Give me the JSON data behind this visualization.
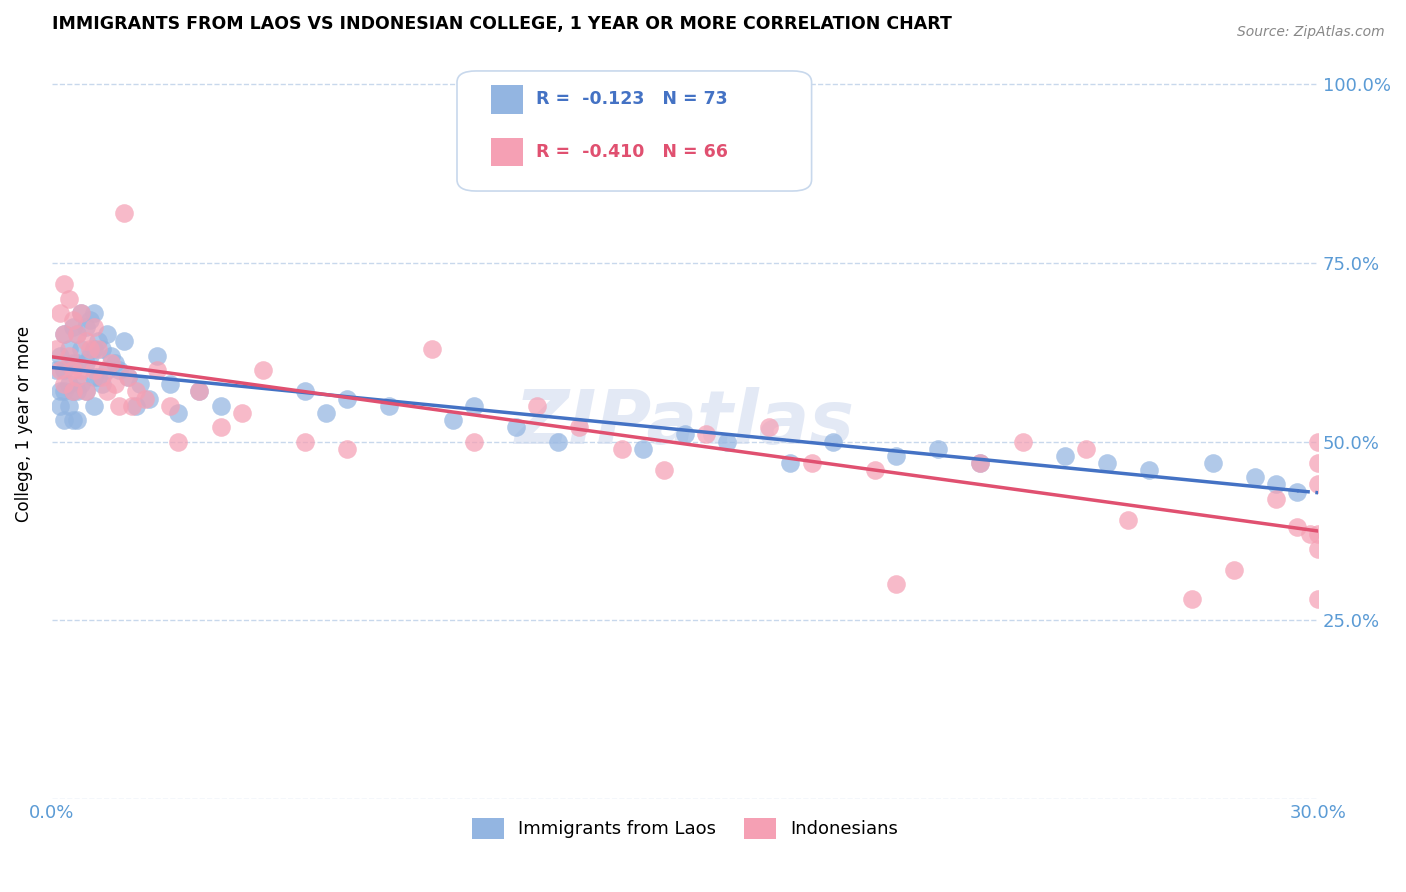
{
  "title": "IMMIGRANTS FROM LAOS VS INDONESIAN COLLEGE, 1 YEAR OR MORE CORRELATION CHART",
  "source": "Source: ZipAtlas.com",
  "ylabel": "College, 1 year or more",
  "xlim": [
    0.0,
    0.3
  ],
  "ylim": [
    0.0,
    1.05
  ],
  "xticks": [
    0.0,
    0.05,
    0.1,
    0.15,
    0.2,
    0.25,
    0.3
  ],
  "xticklabels": [
    "0.0%",
    "",
    "",
    "",
    "",
    "",
    "30.0%"
  ],
  "yticks": [
    0.0,
    0.25,
    0.5,
    0.75,
    1.0
  ],
  "yticklabels": [
    "",
    "25.0%",
    "50.0%",
    "75.0%",
    "100.0%"
  ],
  "legend_laos_r": "-0.123",
  "legend_laos_n": "73",
  "legend_indo_r": "-0.410",
  "legend_indo_n": "66",
  "laos_color": "#93b5e1",
  "indo_color": "#f5a0b4",
  "laos_line_color": "#4472c4",
  "indo_line_color": "#e05070",
  "axis_color": "#5b9bd5",
  "grid_color": "#c8d8ec",
  "watermark": "ZIPatlas",
  "laos_x": [
    0.001,
    0.002,
    0.002,
    0.002,
    0.003,
    0.003,
    0.003,
    0.003,
    0.004,
    0.004,
    0.004,
    0.005,
    0.005,
    0.005,
    0.005,
    0.006,
    0.006,
    0.006,
    0.006,
    0.007,
    0.007,
    0.007,
    0.008,
    0.008,
    0.008,
    0.009,
    0.009,
    0.01,
    0.01,
    0.01,
    0.01,
    0.011,
    0.011,
    0.012,
    0.012,
    0.013,
    0.013,
    0.014,
    0.015,
    0.016,
    0.017,
    0.018,
    0.02,
    0.021,
    0.023,
    0.025,
    0.028,
    0.03,
    0.035,
    0.04,
    0.06,
    0.065,
    0.07,
    0.08,
    0.095,
    0.1,
    0.11,
    0.12,
    0.14,
    0.15,
    0.16,
    0.175,
    0.185,
    0.2,
    0.21,
    0.22,
    0.24,
    0.25,
    0.26,
    0.275,
    0.285,
    0.29,
    0.295
  ],
  "laos_y": [
    0.6,
    0.62,
    0.57,
    0.55,
    0.65,
    0.6,
    0.57,
    0.53,
    0.63,
    0.58,
    0.55,
    0.66,
    0.61,
    0.57,
    0.53,
    0.65,
    0.61,
    0.57,
    0.53,
    0.68,
    0.63,
    0.58,
    0.66,
    0.61,
    0.57,
    0.67,
    0.62,
    0.68,
    0.63,
    0.59,
    0.55,
    0.64,
    0.59,
    0.63,
    0.58,
    0.65,
    0.6,
    0.62,
    0.61,
    0.6,
    0.64,
    0.59,
    0.55,
    0.58,
    0.56,
    0.62,
    0.58,
    0.54,
    0.57,
    0.55,
    0.57,
    0.54,
    0.56,
    0.55,
    0.53,
    0.55,
    0.52,
    0.5,
    0.49,
    0.51,
    0.5,
    0.47,
    0.5,
    0.48,
    0.49,
    0.47,
    0.48,
    0.47,
    0.46,
    0.47,
    0.45,
    0.44,
    0.43
  ],
  "indo_x": [
    0.001,
    0.002,
    0.002,
    0.003,
    0.003,
    0.003,
    0.004,
    0.004,
    0.005,
    0.005,
    0.005,
    0.006,
    0.006,
    0.007,
    0.007,
    0.008,
    0.008,
    0.009,
    0.01,
    0.01,
    0.011,
    0.012,
    0.013,
    0.014,
    0.015,
    0.016,
    0.017,
    0.018,
    0.019,
    0.02,
    0.022,
    0.025,
    0.028,
    0.03,
    0.035,
    0.04,
    0.045,
    0.05,
    0.06,
    0.07,
    0.09,
    0.1,
    0.115,
    0.125,
    0.135,
    0.145,
    0.155,
    0.17,
    0.18,
    0.195,
    0.2,
    0.22,
    0.23,
    0.245,
    0.255,
    0.27,
    0.28,
    0.29,
    0.295,
    0.298,
    0.3,
    0.3,
    0.3,
    0.3,
    0.3,
    0.3
  ],
  "indo_y": [
    0.63,
    0.68,
    0.6,
    0.72,
    0.65,
    0.58,
    0.7,
    0.62,
    0.67,
    0.6,
    0.57,
    0.65,
    0.59,
    0.68,
    0.6,
    0.64,
    0.57,
    0.63,
    0.66,
    0.6,
    0.63,
    0.59,
    0.57,
    0.61,
    0.58,
    0.55,
    0.82,
    0.59,
    0.55,
    0.57,
    0.56,
    0.6,
    0.55,
    0.5,
    0.57,
    0.52,
    0.54,
    0.6,
    0.5,
    0.49,
    0.63,
    0.5,
    0.55,
    0.52,
    0.49,
    0.46,
    0.51,
    0.52,
    0.47,
    0.46,
    0.3,
    0.47,
    0.5,
    0.49,
    0.39,
    0.28,
    0.32,
    0.42,
    0.38,
    0.37,
    0.47,
    0.44,
    0.28,
    0.37,
    0.5,
    0.35
  ]
}
